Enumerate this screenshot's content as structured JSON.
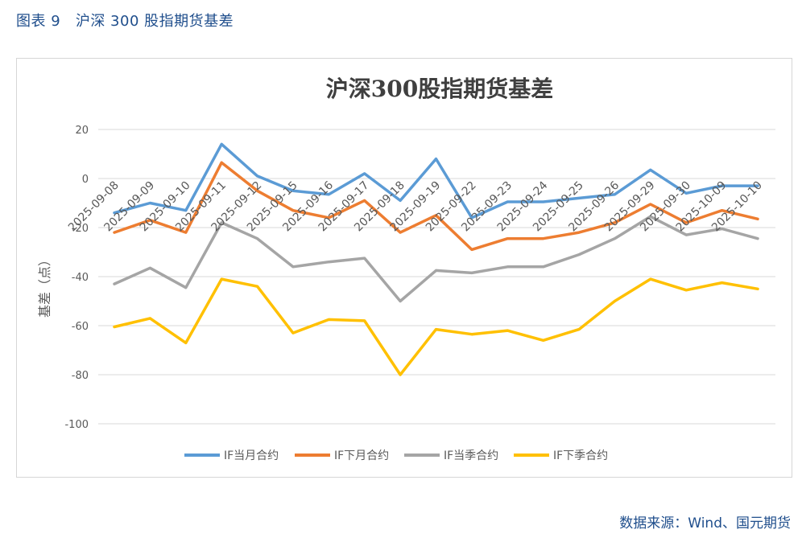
{
  "figure": {
    "caption": "图表 9   沪深 300 股指期货基差",
    "source": "数据来源：Wind、国元期货"
  },
  "chart_data": {
    "type": "line",
    "title": "沪深300股指期货基差",
    "xlabel": "",
    "ylabel": "基差（点）",
    "ylim": [
      -100,
      20
    ],
    "yticks": [
      20,
      0,
      -20,
      -40,
      -60,
      -80,
      -100
    ],
    "grid": true,
    "legend": "bottom",
    "categories": [
      "2025-09-08",
      "2025-09-09",
      "2025-09-10",
      "2025-09-11",
      "2025-09-12",
      "2025-09-15",
      "2025-09-16",
      "2025-09-17",
      "2025-09-18",
      "2025-09-19",
      "2025-09-22",
      "2025-09-23",
      "2025-09-24",
      "2025-09-25",
      "2025-09-26",
      "2025-09-29",
      "2025-09-30",
      "2025-10-09",
      "2025-10-10"
    ],
    "series": [
      {
        "name": "IF当月合约",
        "color": "#5b9bd5",
        "values": [
          -14,
          -10,
          -13,
          14,
          1,
          -5,
          -6.5,
          2,
          -9,
          8,
          -16,
          -9.5,
          -9.5,
          -8,
          -6.5,
          3.5,
          -6,
          -3,
          -3
        ]
      },
      {
        "name": "IF下月合约",
        "color": "#ed7d31",
        "values": [
          -22,
          -17,
          -22,
          6.5,
          -5,
          -13,
          -16,
          -9,
          -22,
          -15,
          -29,
          -24.5,
          -24.5,
          -22,
          -18,
          -10.5,
          -18,
          -13,
          -16.5
        ]
      },
      {
        "name": "IF当季合约",
        "color": "#a5a5a5",
        "values": [
          -43,
          -36.5,
          -44.5,
          -18,
          -24.5,
          -36,
          -34,
          -32.5,
          -50,
          -37.5,
          -38.5,
          -36,
          -36,
          -31,
          -24.5,
          -15.5,
          -23,
          -20.5,
          -24.5
        ]
      },
      {
        "name": "IF下季合约",
        "color": "#ffc000",
        "values": [
          -60.5,
          -57,
          -67,
          -41,
          -44,
          -63,
          -57.5,
          -58,
          -80,
          -61.5,
          -63.5,
          -62,
          -66,
          -61.5,
          -50,
          -41,
          -45.5,
          -42.5,
          -45
        ]
      }
    ]
  }
}
